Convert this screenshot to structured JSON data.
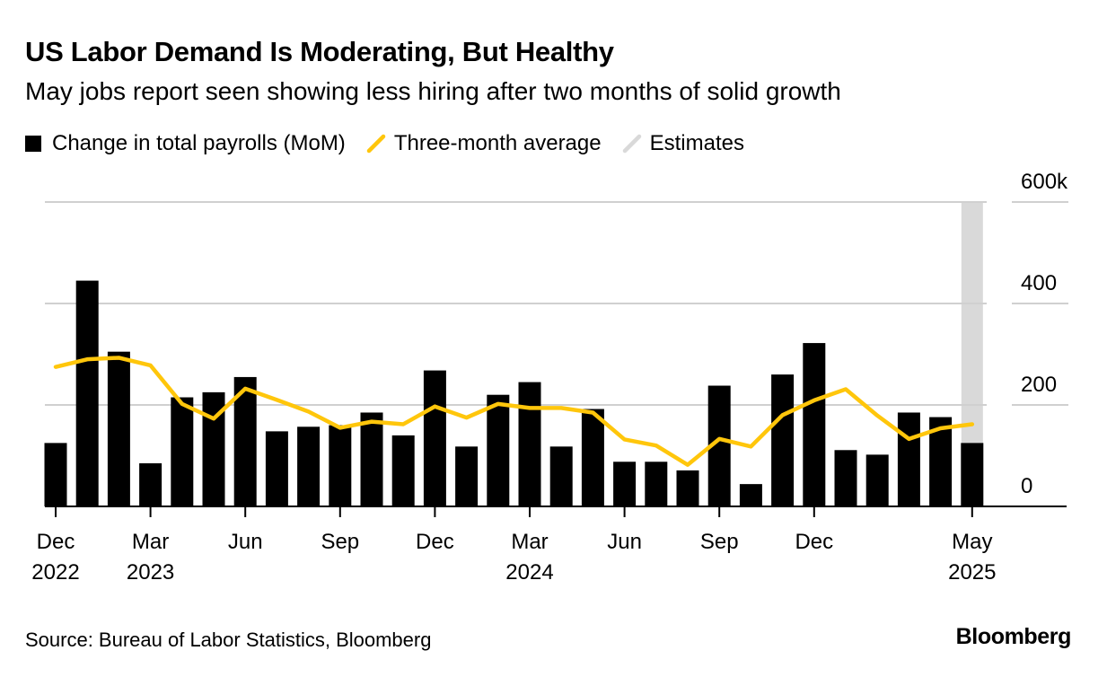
{
  "header": {
    "title": "US Labor Demand Is Moderating, But Healthy",
    "subtitle": "May jobs report seen showing less hiring after two months of solid growth"
  },
  "legend": {
    "bars_label": "Change in total payrolls (MoM)",
    "line_label": "Three-month average",
    "estimate_label": "Estimates"
  },
  "footer": {
    "source": "Source: Bureau of Labor Statistics, Bloomberg",
    "brand": "Bloomberg"
  },
  "colors": {
    "bar": "#000000",
    "line": "#FFC60B",
    "estimate": "#D9D9D9",
    "grid": "#D0D0D0"
  },
  "chart_data": {
    "type": "bar",
    "title": "US Labor Demand Is Moderating, But Healthy",
    "subtitle": "May jobs report seen showing less hiring after two months of solid growth",
    "categories": [
      "Dec 2022",
      "Jan 2023",
      "Feb 2023",
      "Mar 2023",
      "Apr 2023",
      "May 2023",
      "Jun 2023",
      "Jul 2023",
      "Aug 2023",
      "Sep 2023",
      "Oct 2023",
      "Nov 2023",
      "Dec 2023",
      "Jan 2024",
      "Feb 2024",
      "Mar 2024",
      "Apr 2024",
      "May 2024",
      "Jun 2024",
      "Jul 2024",
      "Aug 2024",
      "Sep 2024",
      "Oct 2024",
      "Nov 2024",
      "Dec 2024",
      "Jan 2025",
      "Feb 2025",
      "Mar 2025",
      "Apr 2025",
      "May 2025"
    ],
    "series": [
      {
        "name": "Change in total payrolls (MoM)",
        "type": "bar",
        "values": [
          125,
          445,
          305,
          85,
          215,
          225,
          255,
          148,
          157,
          160,
          185,
          140,
          268,
          118,
          220,
          245,
          118,
          192,
          88,
          88,
          71,
          238,
          44,
          260,
          322,
          111,
          102,
          185,
          176,
          125
        ]
      },
      {
        "name": "Three-month average",
        "type": "line",
        "values": [
          275,
          290,
          293,
          278,
          202,
          173,
          232,
          210,
          187,
          155,
          167,
          162,
          197,
          175,
          202,
          194,
          194,
          185,
          132,
          120,
          82,
          133,
          118,
          180,
          209,
          231,
          179,
          133,
          154,
          162
        ]
      }
    ],
    "estimates": {
      "label": "Estimates",
      "categories": [
        "May 2025"
      ]
    },
    "y_ticks": [
      0,
      200,
      400,
      600
    ],
    "y_tick_labels": [
      "0",
      "200",
      "400",
      "600k"
    ],
    "ylim": [
      0,
      600
    ],
    "x_tick_labels": [
      {
        "index": 0,
        "month": "Dec",
        "year": "2022"
      },
      {
        "index": 3,
        "month": "Mar",
        "year": "2023"
      },
      {
        "index": 6,
        "month": "Jun",
        "year": ""
      },
      {
        "index": 9,
        "month": "Sep",
        "year": ""
      },
      {
        "index": 12,
        "month": "Dec",
        "year": ""
      },
      {
        "index": 15,
        "month": "Mar",
        "year": "2024"
      },
      {
        "index": 18,
        "month": "Jun",
        "year": ""
      },
      {
        "index": 21,
        "month": "Sep",
        "year": ""
      },
      {
        "index": 24,
        "month": "Dec",
        "year": ""
      },
      {
        "index": 29,
        "month": "May",
        "year": "2025"
      }
    ],
    "legend_position": "top-left",
    "y_axis_side": "right",
    "grid": true
  }
}
